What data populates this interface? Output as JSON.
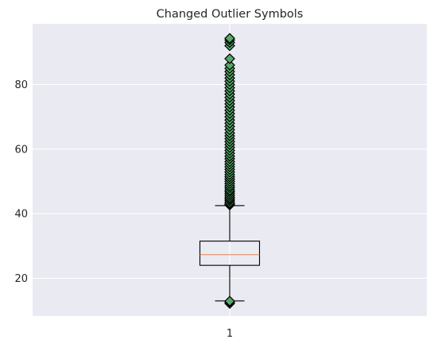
{
  "chart_data": {
    "type": "box",
    "title": "Changed Outlier Symbols",
    "xlabel": "",
    "ylabel": "",
    "categories": [
      "1"
    ],
    "ylim": [
      8.3,
      98.8
    ],
    "yticks": [
      20,
      40,
      60,
      80
    ],
    "grid": true,
    "box": {
      "whisker_low": 13.0,
      "q1": 24.0,
      "median": 27.3,
      "q3": 31.5,
      "whisker_high": 42.5
    },
    "outlier_marker": "diamond",
    "outliers": [
      12.2,
      12.6,
      12.9,
      42.7,
      43.0,
      43.4,
      44.0,
      44.5,
      45.0,
      45.6,
      46.2,
      46.8,
      47.3,
      48.0,
      48.6,
      49.3,
      50.0,
      50.7,
      51.4,
      52.1,
      52.9,
      53.7,
      54.5,
      55.3,
      56.1,
      57.0,
      57.8,
      58.7,
      59.6,
      60.5,
      61.4,
      62.3,
      63.2,
      64.1,
      65.0,
      66.0,
      67.0,
      68.0,
      69.0,
      70.0,
      71.0,
      72.0,
      73.0,
      74.0,
      75.0,
      76.0,
      77.0,
      78.0,
      79.0,
      80.0,
      81.0,
      82.0,
      83.0,
      84.0,
      85.0,
      86.0,
      88.0,
      92.0,
      93.0,
      93.8,
      94.3
    ],
    "colors": {
      "background": "#EAEAF2",
      "grid": "#FFFFFF",
      "box_line": "#000000",
      "median": "#DD8452",
      "outlier_fill": "#55A868",
      "outlier_edge": "#000000",
      "text": "#262626"
    }
  }
}
